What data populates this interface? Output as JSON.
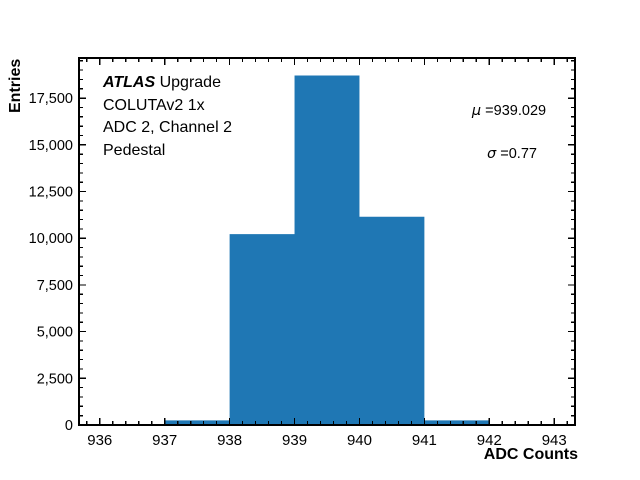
{
  "figure": {
    "background": "#ffffff",
    "axis_color": "#000000"
  },
  "chart_data": {
    "type": "bar",
    "subtype": "histogram",
    "title": "",
    "xlabel": "ADC Counts",
    "ylabel": "Entries",
    "bin_edges": [
      937,
      938,
      939,
      940,
      941,
      942
    ],
    "values": [
      250,
      10220,
      18710,
      11150,
      250
    ],
    "bar_color": "#1f77b4",
    "xlim": [
      935.68,
      943.32
    ],
    "ylim": [
      0,
      19650
    ],
    "x_ticks": [
      936,
      937,
      938,
      939,
      940,
      941,
      942,
      943
    ],
    "x_tick_labels": [
      "936",
      "937",
      "938",
      "939",
      "940",
      "941",
      "942",
      "943"
    ],
    "x_minor_step": 0.2,
    "y_ticks": [
      0,
      2500,
      5000,
      7500,
      10000,
      12500,
      15000,
      17500
    ],
    "y_tick_labels": [
      "0",
      "2,500",
      "5,000",
      "7,500",
      "10,000",
      "12,500",
      "15,000",
      "17,500"
    ],
    "y_minor_step": 500,
    "grid": false,
    "legend": null,
    "annotation": {
      "line1_bold_italic": "ATLAS",
      "line1_rest": " Upgrade",
      "line2": "COLUTAv2 1x",
      "line3": "ADC 2, Channel 2",
      "line4": "Pedestal"
    },
    "stats": {
      "mu_symbol": "μ",
      "mu_rest": " =939.029",
      "sigma_symbol": "σ",
      "sigma_rest": " =0.77"
    }
  }
}
